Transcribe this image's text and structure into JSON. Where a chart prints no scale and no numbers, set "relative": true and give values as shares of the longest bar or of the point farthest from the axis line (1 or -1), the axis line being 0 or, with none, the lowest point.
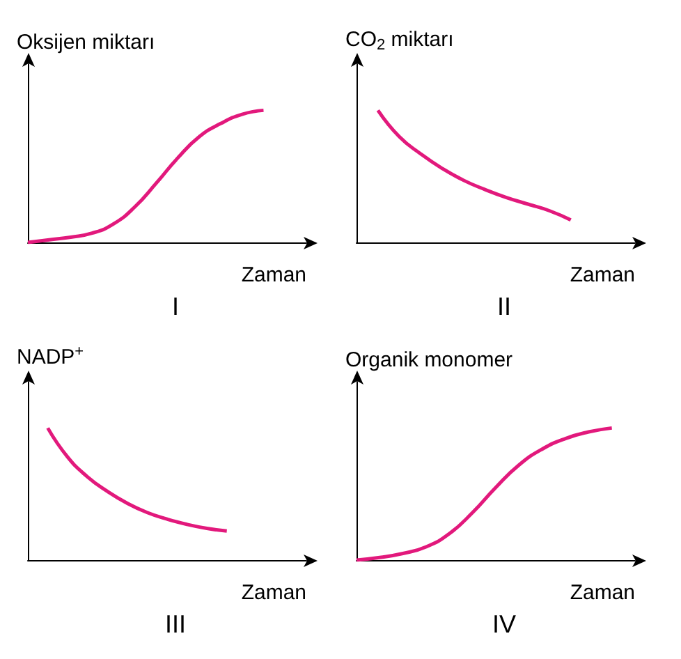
{
  "chart_data": [
    {
      "type": "line",
      "title": "I",
      "ylabel": "Oksijen miktarı",
      "xlabel": "Zaman",
      "relative": true,
      "categories": [
        null,
        null,
        null,
        null,
        null,
        null,
        null,
        null,
        null,
        null,
        null,
        null,
        null,
        null
      ],
      "series": [
        {
          "color": "#e2197c",
          "values": [
            0,
            0.02,
            0.04,
            0.07,
            0.14,
            0.27,
            0.45,
            0.64,
            0.8,
            0.9,
            0.97,
            1,
            null,
            null
          ]
        }
      ]
    },
    {
      "type": "line",
      "title": "II",
      "ylabel": "CO$_{2}$ miktarı",
      "xlabel": "Zaman",
      "relative": true,
      "categories": [
        null,
        null,
        null,
        null,
        null,
        null,
        null,
        null,
        null,
        null,
        null,
        null,
        null,
        null
      ],
      "series": [
        {
          "color": "#e2197c",
          "values": [
            null,
            1,
            0.8,
            0.67,
            0.56,
            0.47,
            0.4,
            0.34,
            0.29,
            0.24,
            0.17,
            null,
            null,
            null
          ]
        }
      ]
    },
    {
      "type": "line",
      "title": "III",
      "ylabel": "NADP$^{+}$",
      "xlabel": "Zaman",
      "relative": true,
      "categories": [
        null,
        null,
        null,
        null,
        null,
        null,
        null,
        null,
        null,
        null,
        null,
        null,
        null,
        null,
        null
      ],
      "series": [
        {
          "color": "#e2197c",
          "values": [
            null,
            1,
            0.78,
            0.63,
            0.52,
            0.43,
            0.36,
            0.31,
            0.27,
            0.24,
            0.22,
            null,
            null,
            null,
            null
          ]
        }
      ]
    },
    {
      "type": "line",
      "title": "IV",
      "ylabel": "Organik monomer",
      "xlabel": "Zaman",
      "relative": true,
      "categories": [
        null,
        null,
        null,
        null,
        null,
        null,
        null,
        null,
        null,
        null,
        null,
        null,
        null
      ],
      "series": [
        {
          "color": "#e2197c",
          "values": [
            0,
            0.02,
            0.05,
            0.1,
            0.2,
            0.36,
            0.55,
            0.72,
            0.84,
            0.92,
            0.97,
            1,
            null
          ]
        }
      ]
    }
  ]
}
